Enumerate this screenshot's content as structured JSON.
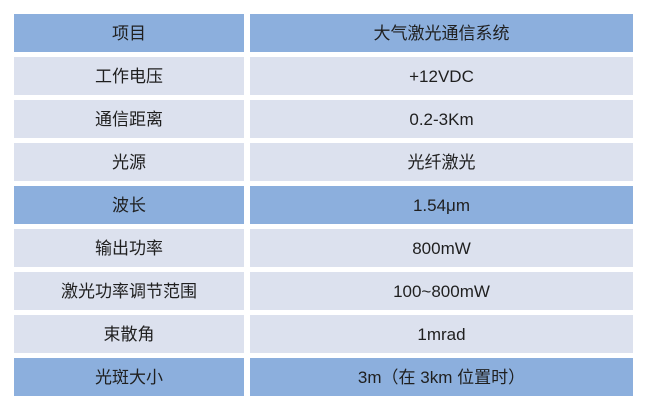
{
  "colors": {
    "header_blue": "#8cafdd",
    "light_row": "#dce1ee",
    "text": "#1f1f1f",
    "page_bg": "#ffffff"
  },
  "table": {
    "header": {
      "item": "项目",
      "value": "大气激光通信系统"
    },
    "rows": [
      {
        "item": "工作电压",
        "value": "+12VDC",
        "highlight": false
      },
      {
        "item": "通信距离",
        "value": "0.2-3Km",
        "highlight": false
      },
      {
        "item": "光源",
        "value": "光纤激光",
        "highlight": false
      },
      {
        "item": "波长",
        "value": "1.54μm",
        "highlight": true
      },
      {
        "item": "输出功率",
        "value": "800mW",
        "highlight": false
      },
      {
        "item": "激光功率调节范围",
        "value": "100~800mW",
        "highlight": false
      },
      {
        "item": "束散角",
        "value": "1mrad",
        "highlight": false
      },
      {
        "item": "光斑大小",
        "value": "3m（在 3km 位置时）",
        "highlight": true
      }
    ]
  }
}
